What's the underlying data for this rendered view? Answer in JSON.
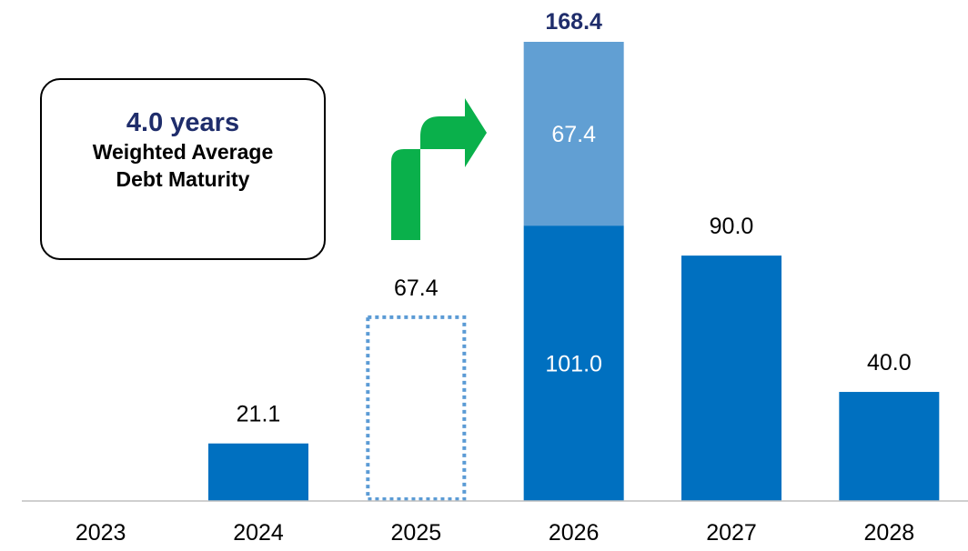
{
  "chart_data": {
    "type": "bar",
    "categories": [
      "2023",
      "2024",
      "2025",
      "2026",
      "2027",
      "2028"
    ],
    "series": [
      {
        "values": [
          0,
          21.1,
          0,
          101.0,
          90.0,
          40.0
        ]
      },
      {
        "values": [
          0,
          0,
          0,
          67.4,
          0,
          0
        ]
      },
      {
        "values": [
          0,
          0,
          67.4,
          0,
          0,
          0
        ]
      }
    ],
    "data_labels": [
      "",
      "21.1",
      "67.4",
      "168.4",
      "90.0",
      "40.0"
    ],
    "segment_labels": {
      "2026": [
        "101.0",
        "67.4"
      ]
    },
    "ylim": [
      0,
      168.4
    ],
    "xlabel": "",
    "ylabel": "",
    "grid": false,
    "legend": "none",
    "colors": {
      "primary": "#0070c0",
      "secondary": "#619fd3",
      "dashed_outline": "#5b9bd5",
      "total_label": "#1f2d6b",
      "arrow": "#0ab04b",
      "axis": "#bfbfbf"
    }
  },
  "callout": {
    "headline": "4.0 years",
    "caption": "Weighted Average Debt Maturity"
  },
  "arrow": {
    "icon": "green-bent-arrow-icon",
    "from": "2025",
    "to": "2026"
  }
}
